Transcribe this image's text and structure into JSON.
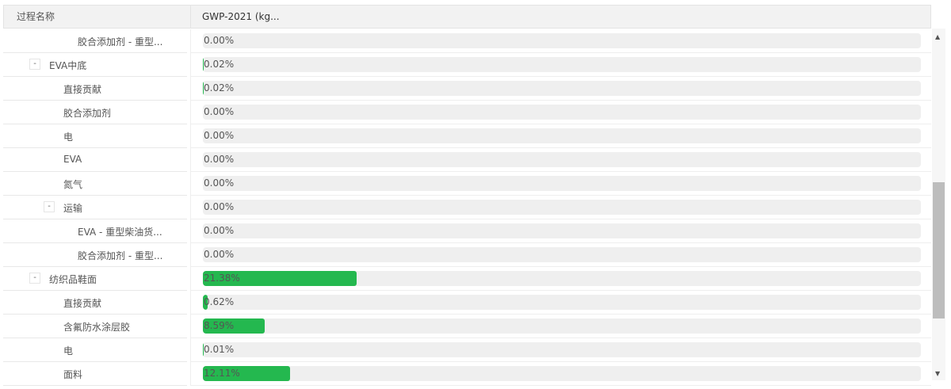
{
  "header": {
    "col_name": "过程名称",
    "col_value": "GWP-2021 (kg..."
  },
  "rows": [
    {
      "name": "胶合添加剂 - 重型...",
      "level": 3,
      "toggle": null,
      "value": "0.00%",
      "pct": 0
    },
    {
      "name": "EVA中底",
      "level": 1,
      "toggle": "-",
      "value": "0.02%",
      "pct": 0.02
    },
    {
      "name": "直接贡献",
      "level": 2,
      "toggle": null,
      "value": "0.02%",
      "pct": 0.02
    },
    {
      "name": "胶合添加剂",
      "level": 2,
      "toggle": null,
      "value": "0.00%",
      "pct": 0
    },
    {
      "name": "电",
      "level": 2,
      "toggle": null,
      "value": "0.00%",
      "pct": 0
    },
    {
      "name": "EVA",
      "level": 2,
      "toggle": null,
      "value": "0.00%",
      "pct": 0
    },
    {
      "name": "氮气",
      "level": 2,
      "toggle": null,
      "value": "0.00%",
      "pct": 0
    },
    {
      "name": "运输",
      "level": 2,
      "toggle": "-",
      "value": "0.00%",
      "pct": 0
    },
    {
      "name": "EVA - 重型柴油货...",
      "level": 3,
      "toggle": null,
      "value": "0.00%",
      "pct": 0
    },
    {
      "name": "胶合添加剂 - 重型...",
      "level": 3,
      "toggle": null,
      "value": "0.00%",
      "pct": 0
    },
    {
      "name": "纺织品鞋面",
      "level": 1,
      "toggle": "-",
      "value": "21.38%",
      "pct": 21.38
    },
    {
      "name": "直接贡献",
      "level": 2,
      "toggle": null,
      "value": "0.62%",
      "pct": 0.62
    },
    {
      "name": "含氟防水涂层胶",
      "level": 2,
      "toggle": null,
      "value": "8.59%",
      "pct": 8.59
    },
    {
      "name": "电",
      "level": 2,
      "toggle": null,
      "value": "0.01%",
      "pct": 0.01
    },
    {
      "name": "面料",
      "level": 2,
      "toggle": null,
      "value": "12.11%",
      "pct": 12.11
    }
  ],
  "colors": {
    "bar": "#24b84f",
    "track": "#efefef"
  },
  "scrollbar": {
    "up": "▲",
    "down": "▼"
  }
}
